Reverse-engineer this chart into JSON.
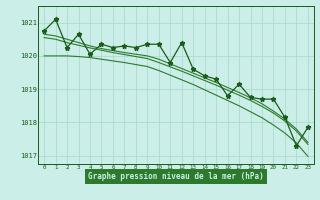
{
  "xlabel": "Graphe pression niveau de la mer (hPa)",
  "bg_color": "#cceee8",
  "grid_color": "#aaddcc",
  "line_color_dark": "#1a5c1a",
  "line_color_mid": "#2d7a2d",
  "x": [
    0,
    1,
    2,
    3,
    4,
    5,
    6,
    7,
    8,
    9,
    10,
    11,
    12,
    13,
    14,
    15,
    16,
    17,
    18,
    19,
    20,
    21,
    22,
    23
  ],
  "y_zigzag": [
    1020.75,
    1021.1,
    1020.25,
    1020.65,
    1020.05,
    1020.35,
    1020.25,
    1020.3,
    1020.25,
    1020.35,
    1020.35,
    1019.8,
    1020.4,
    1019.6,
    1019.4,
    1019.3,
    1018.8,
    1019.15,
    1018.75,
    1018.7,
    1018.7,
    1018.15,
    1017.3,
    1017.85
  ],
  "y_smooth_top": [
    1020.65,
    1020.6,
    1020.5,
    1020.4,
    1020.3,
    1020.22,
    1020.16,
    1020.1,
    1020.05,
    1020.0,
    1019.9,
    1019.76,
    1019.62,
    1019.48,
    1019.34,
    1019.2,
    1019.05,
    1018.9,
    1018.74,
    1018.56,
    1018.34,
    1018.1,
    1017.8,
    1017.4
  ],
  "y_smooth_mid1": [
    1020.55,
    1020.5,
    1020.4,
    1020.32,
    1020.24,
    1020.17,
    1020.1,
    1020.04,
    1019.98,
    1019.92,
    1019.8,
    1019.67,
    1019.54,
    1019.4,
    1019.26,
    1019.12,
    1018.97,
    1018.82,
    1018.66,
    1018.48,
    1018.28,
    1018.04,
    1017.74,
    1017.34
  ],
  "y_smooth_bottom": [
    1020.0,
    1020.0,
    1020.0,
    1019.98,
    1019.95,
    1019.9,
    1019.85,
    1019.8,
    1019.74,
    1019.68,
    1019.56,
    1019.42,
    1019.28,
    1019.14,
    1018.98,
    1018.82,
    1018.66,
    1018.5,
    1018.32,
    1018.14,
    1017.92,
    1017.68,
    1017.38,
    1016.98
  ],
  "ylim": [
    1016.75,
    1021.5
  ],
  "yticks": [
    1017,
    1018,
    1019,
    1020,
    1021
  ],
  "xticks": [
    0,
    1,
    2,
    3,
    4,
    5,
    6,
    7,
    8,
    9,
    10,
    11,
    12,
    13,
    14,
    15,
    16,
    17,
    18,
    19,
    20,
    21,
    22,
    23
  ],
  "marker": "*",
  "markersize": 3.5,
  "xlabel_bg": "#2d7a2d",
  "xlabel_color": "#cceee8"
}
